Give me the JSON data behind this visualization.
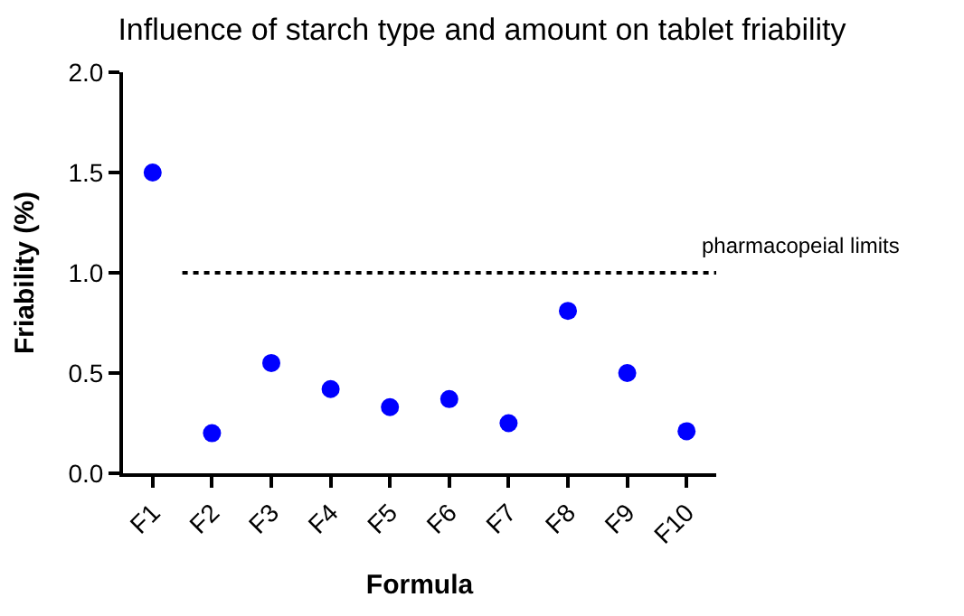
{
  "chart_data": {
    "type": "scatter",
    "title": "Influence of starch type and amount on tablet friability",
    "xlabel": "Formula",
    "ylabel": "Friability (%)",
    "categories": [
      "F1",
      "F2",
      "F3",
      "F4",
      "F5",
      "F6",
      "F7",
      "F8",
      "F9",
      "F10"
    ],
    "series": [
      {
        "color": "#0000ff",
        "values": [
          1.5,
          0.2,
          0.55,
          0.42,
          0.33,
          0.37,
          0.25,
          0.81,
          0.5,
          0.21
        ]
      }
    ],
    "ylim": [
      0,
      2.0
    ],
    "yticks": [
      {
        "value": 0,
        "label": "0.0"
      },
      0.5,
      {
        "value": 1,
        "label": "1.0"
      },
      1.5,
      {
        "value": 2,
        "label": "2.0"
      }
    ],
    "ref_lines": [
      {
        "axis": "y",
        "value": 1.0,
        "label": "pharmacopeial limits",
        "color": "#000000",
        "line_style": "dotted"
      }
    ],
    "marker": "circle",
    "grid": false,
    "legend": false
  }
}
